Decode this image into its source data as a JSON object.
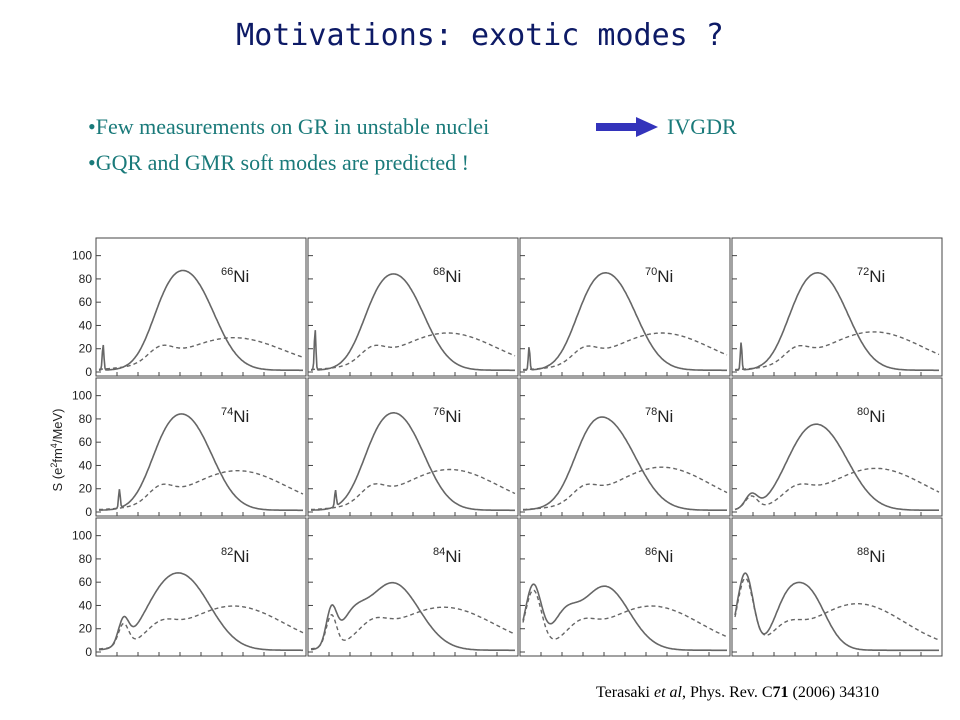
{
  "title": "Motivations: exotic modes ?",
  "bullets": {
    "b1_text": "•Few measurements on GR in unstable nuclei",
    "b1_target": "IVGDR",
    "b2_text": "•GQR and GMR soft modes are predicted !"
  },
  "colors": {
    "title": "#0d1a66",
    "bullet": "#1a7a7a",
    "arrow": "#3333bb"
  },
  "chart_data": {
    "type": "line",
    "ylabel": "S (e²fm⁴/MeV)",
    "ylabel_parts": {
      "pre": "S (e",
      "sup1": "2",
      "mid": "fm",
      "sup2": "4",
      "post": "/MeV)"
    },
    "ylim": [
      0,
      110
    ],
    "yticks": [
      "0",
      "20",
      "40",
      "60",
      "80",
      "100"
    ],
    "element": "Ni",
    "grid_rows": 3,
    "grid_cols": 4,
    "panels": [
      {
        "mass": "66",
        "main": [
          {
            "e": 0.45,
            "h": 76,
            "w": 0.12
          },
          {
            "e": 0.32,
            "h": 26,
            "w": 0.08
          }
        ],
        "broad": [
          {
            "e": 0.66,
            "h": 28,
            "w": 0.25
          },
          {
            "e": 0.3,
            "h": 11,
            "w": 0.06
          }
        ],
        "spike": [
          0.02,
          22
        ],
        "low": []
      },
      {
        "mass": "68",
        "main": [
          {
            "e": 0.44,
            "h": 74,
            "w": 0.12
          },
          {
            "e": 0.31,
            "h": 24,
            "w": 0.08
          }
        ],
        "broad": [
          {
            "e": 0.67,
            "h": 32,
            "w": 0.24
          },
          {
            "e": 0.3,
            "h": 11,
            "w": 0.06
          }
        ],
        "spike": [
          0.02,
          35
        ],
        "low": []
      },
      {
        "mass": "70",
        "main": [
          {
            "e": 0.44,
            "h": 75,
            "w": 0.12
          },
          {
            "e": 0.31,
            "h": 24,
            "w": 0.08
          }
        ],
        "broad": [
          {
            "e": 0.68,
            "h": 32,
            "w": 0.24
          },
          {
            "e": 0.3,
            "h": 11,
            "w": 0.06
          }
        ],
        "spike": [
          0.03,
          20
        ],
        "low": []
      },
      {
        "mass": "72",
        "main": [
          {
            "e": 0.44,
            "h": 75,
            "w": 0.12
          },
          {
            "e": 0.31,
            "h": 24,
            "w": 0.08
          }
        ],
        "broad": [
          {
            "e": 0.68,
            "h": 33,
            "w": 0.24
          },
          {
            "e": 0.3,
            "h": 11,
            "w": 0.06
          }
        ],
        "spike": [
          0.03,
          24
        ],
        "low": []
      },
      {
        "mass": "74",
        "main": [
          {
            "e": 0.44,
            "h": 74,
            "w": 0.12
          },
          {
            "e": 0.31,
            "h": 24,
            "w": 0.08
          }
        ],
        "broad": [
          {
            "e": 0.68,
            "h": 34,
            "w": 0.24
          },
          {
            "e": 0.3,
            "h": 12,
            "w": 0.06
          }
        ],
        "spike": [
          0.1,
          16
        ],
        "low": []
      },
      {
        "mass": "76",
        "main": [
          {
            "e": 0.44,
            "h": 75,
            "w": 0.12
          },
          {
            "e": 0.31,
            "h": 24,
            "w": 0.08
          }
        ],
        "broad": [
          {
            "e": 0.68,
            "h": 35,
            "w": 0.24
          },
          {
            "e": 0.3,
            "h": 12,
            "w": 0.06
          }
        ],
        "spike": [
          0.12,
          14
        ],
        "low": []
      },
      {
        "mass": "78",
        "main": [
          {
            "e": 0.43,
            "h": 70,
            "w": 0.13
          },
          {
            "e": 0.31,
            "h": 22,
            "w": 0.08
          }
        ],
        "broad": [
          {
            "e": 0.68,
            "h": 37,
            "w": 0.24
          },
          {
            "e": 0.3,
            "h": 11,
            "w": 0.06
          }
        ],
        "spike": null,
        "low": []
      },
      {
        "mass": "80",
        "main": [
          {
            "e": 0.43,
            "h": 66,
            "w": 0.13
          },
          {
            "e": 0.3,
            "h": 18,
            "w": 0.09
          }
        ],
        "broad": [
          {
            "e": 0.69,
            "h": 36,
            "w": 0.24
          },
          {
            "e": 0.3,
            "h": 12,
            "w": 0.07
          }
        ],
        "spike": null,
        "low": [
          {
            "e": 0.08,
            "h": 12,
            "w": 0.03
          }
        ]
      },
      {
        "mass": "82",
        "main": [
          {
            "e": 0.42,
            "h": 60,
            "w": 0.13
          },
          {
            "e": 0.28,
            "h": 17,
            "w": 0.09
          }
        ],
        "broad": [
          {
            "e": 0.66,
            "h": 38,
            "w": 0.25
          },
          {
            "e": 0.3,
            "h": 12,
            "w": 0.07
          }
        ],
        "spike": null,
        "low": [
          {
            "e": 0.12,
            "h": 21,
            "w": 0.025
          }
        ]
      },
      {
        "mass": "84",
        "main": [
          {
            "e": 0.4,
            "h": 58,
            "w": 0.13
          },
          {
            "e": 0.2,
            "h": 18,
            "w": 0.06
          }
        ],
        "broad": [
          {
            "e": 0.65,
            "h": 37,
            "w": 0.25
          },
          {
            "e": 0.3,
            "h": 13,
            "w": 0.07
          }
        ],
        "spike": null,
        "low": [
          {
            "e": 0.1,
            "h": 30,
            "w": 0.025
          }
        ]
      },
      {
        "mass": "86",
        "main": [
          {
            "e": 0.4,
            "h": 55,
            "w": 0.12
          },
          {
            "e": 0.2,
            "h": 22,
            "w": 0.06
          }
        ],
        "broad": [
          {
            "e": 0.63,
            "h": 38,
            "w": 0.24
          },
          {
            "e": 0.28,
            "h": 13,
            "w": 0.07
          }
        ],
        "spike": null,
        "low": [
          {
            "e": 0.05,
            "h": 55,
            "w": 0.04
          }
        ]
      },
      {
        "mass": "88",
        "main": [
          {
            "e": 0.35,
            "h": 52,
            "w": 0.09
          },
          {
            "e": 0.24,
            "h": 22,
            "w": 0.06
          }
        ],
        "broad": [
          {
            "e": 0.6,
            "h": 40,
            "w": 0.23
          },
          {
            "e": 0.25,
            "h": 12,
            "w": 0.07
          }
        ],
        "spike": null,
        "low": [
          {
            "e": 0.05,
            "h": 66,
            "w": 0.04
          }
        ]
      }
    ]
  },
  "caption": {
    "author": "Terasaki",
    "etal": " et al",
    "journal": ", Phys. Rev. C",
    "volume": "71",
    "rest": " (2006) 34310"
  }
}
